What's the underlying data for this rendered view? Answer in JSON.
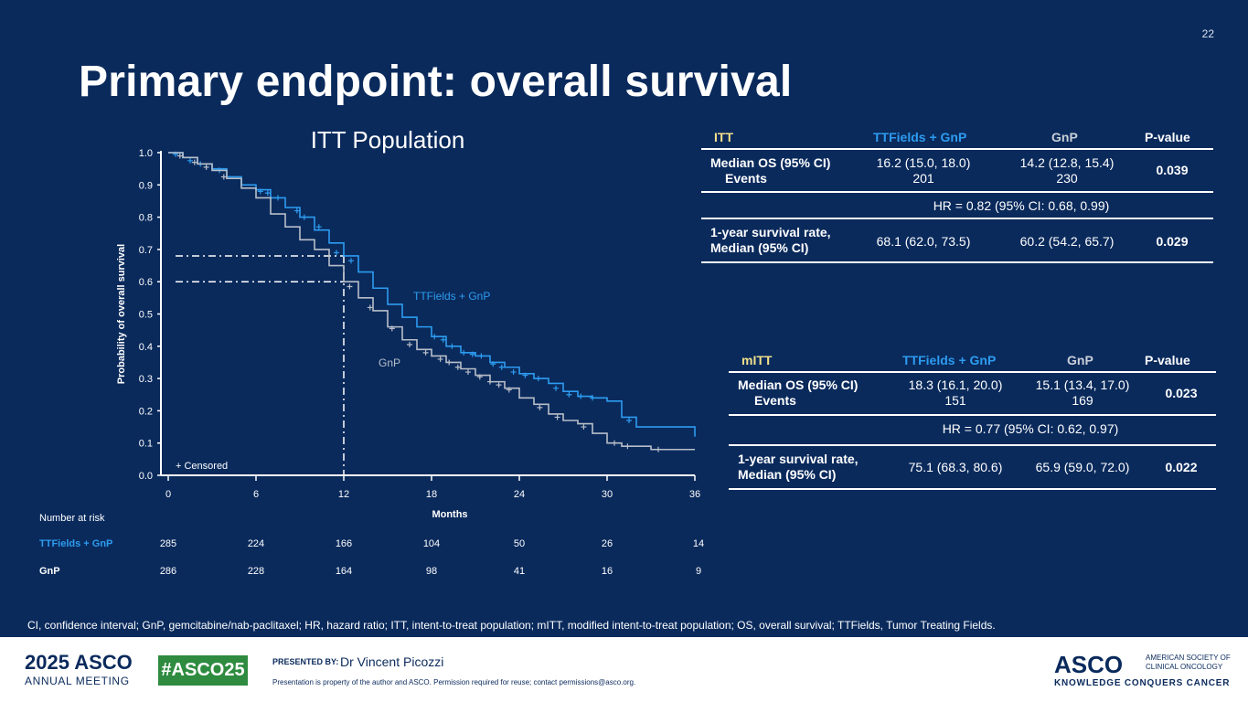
{
  "slide": {
    "number": "22",
    "title": "Primary endpoint: overall survival"
  },
  "chart_data": {
    "type": "line",
    "subtype": "kaplan-meier",
    "title": "ITT Population",
    "xlabel": "Months",
    "ylabel": "Probability of overall survival",
    "x_ticks": [
      0,
      6,
      12,
      18,
      24,
      30,
      36
    ],
    "y_ticks": [
      "0.0",
      "0.1",
      "0.2",
      "0.3",
      "0.4",
      "0.5",
      "0.6",
      "0.7",
      "0.8",
      "0.9",
      "1.0"
    ],
    "xlim": [
      0,
      36
    ],
    "ylim": [
      0,
      1.0
    ],
    "legend_note": "+ Censored",
    "reference_lines": [
      {
        "month": 12,
        "survival": 0.68,
        "series": "TTFields + GnP"
      },
      {
        "month": 12,
        "survival": 0.6,
        "series": "GnP"
      }
    ],
    "series": [
      {
        "name": "TTFields + GnP",
        "label": "TTFields + GnP",
        "color": "#2d9cf0",
        "points": [
          [
            0,
            1.0
          ],
          [
            1,
            0.985
          ],
          [
            2,
            0.965
          ],
          [
            3,
            0.95
          ],
          [
            4,
            0.925
          ],
          [
            5,
            0.9
          ],
          [
            6,
            0.885
          ],
          [
            7,
            0.86
          ],
          [
            8,
            0.83
          ],
          [
            9,
            0.8
          ],
          [
            10,
            0.76
          ],
          [
            11,
            0.72
          ],
          [
            12,
            0.68
          ],
          [
            13,
            0.63
          ],
          [
            14,
            0.58
          ],
          [
            15,
            0.53
          ],
          [
            16,
            0.49
          ],
          [
            17,
            0.46
          ],
          [
            18,
            0.43
          ],
          [
            19,
            0.4
          ],
          [
            20,
            0.38
          ],
          [
            21,
            0.37
          ],
          [
            22,
            0.35
          ],
          [
            23,
            0.335
          ],
          [
            24,
            0.315
          ],
          [
            25,
            0.3
          ],
          [
            26,
            0.285
          ],
          [
            27,
            0.26
          ],
          [
            28,
            0.245
          ],
          [
            29,
            0.24
          ],
          [
            30,
            0.23
          ],
          [
            31,
            0.18
          ],
          [
            32,
            0.15
          ],
          [
            33,
            0.15
          ],
          [
            35,
            0.15
          ],
          [
            36,
            0.12
          ]
        ],
        "censored": [
          [
            0.5,
            0.995
          ],
          [
            1.5,
            0.975
          ],
          [
            2.2,
            0.965
          ],
          [
            3.5,
            0.945
          ],
          [
            6.3,
            0.88
          ],
          [
            6.8,
            0.875
          ],
          [
            7.5,
            0.86
          ],
          [
            8.8,
            0.82
          ],
          [
            9.3,
            0.8
          ],
          [
            10.3,
            0.77
          ],
          [
            11.5,
            0.69
          ],
          [
            12.5,
            0.665
          ],
          [
            18.2,
            0.43
          ],
          [
            18.8,
            0.42
          ],
          [
            19.4,
            0.4
          ],
          [
            20.2,
            0.38
          ],
          [
            20.8,
            0.375
          ],
          [
            21.4,
            0.37
          ],
          [
            22.2,
            0.345
          ],
          [
            22.8,
            0.335
          ],
          [
            23.6,
            0.32
          ],
          [
            24.4,
            0.31
          ],
          [
            25.3,
            0.3
          ],
          [
            26.5,
            0.27
          ],
          [
            27.4,
            0.25
          ],
          [
            28.2,
            0.245
          ],
          [
            29.0,
            0.24
          ],
          [
            31.5,
            0.17
          ]
        ]
      },
      {
        "name": "GnP",
        "label": "GnP",
        "color": "#b8bec8",
        "points": [
          [
            0,
            1.0
          ],
          [
            1,
            0.985
          ],
          [
            2,
            0.965
          ],
          [
            3,
            0.945
          ],
          [
            4,
            0.92
          ],
          [
            5,
            0.89
          ],
          [
            6,
            0.86
          ],
          [
            7,
            0.81
          ],
          [
            8,
            0.77
          ],
          [
            9,
            0.73
          ],
          [
            10,
            0.7
          ],
          [
            11,
            0.65
          ],
          [
            12,
            0.6
          ],
          [
            13,
            0.55
          ],
          [
            14,
            0.51
          ],
          [
            15,
            0.46
          ],
          [
            16,
            0.42
          ],
          [
            17,
            0.39
          ],
          [
            18,
            0.37
          ],
          [
            19,
            0.35
          ],
          [
            20,
            0.33
          ],
          [
            21,
            0.31
          ],
          [
            22,
            0.29
          ],
          [
            23,
            0.27
          ],
          [
            24,
            0.24
          ],
          [
            25,
            0.22
          ],
          [
            26,
            0.19
          ],
          [
            27,
            0.17
          ],
          [
            28,
            0.16
          ],
          [
            29,
            0.13
          ],
          [
            30,
            0.1
          ],
          [
            31,
            0.09
          ],
          [
            32,
            0.09
          ],
          [
            33,
            0.08
          ],
          [
            36,
            0.08
          ]
        ],
        "censored": [
          [
            0.8,
            0.99
          ],
          [
            1.8,
            0.97
          ],
          [
            2.6,
            0.955
          ],
          [
            3.8,
            0.925
          ],
          [
            12.4,
            0.585
          ],
          [
            13.8,
            0.52
          ],
          [
            15.3,
            0.455
          ],
          [
            16.5,
            0.405
          ],
          [
            17.6,
            0.38
          ],
          [
            18.6,
            0.36
          ],
          [
            19.2,
            0.35
          ],
          [
            19.8,
            0.335
          ],
          [
            20.5,
            0.32
          ],
          [
            21.3,
            0.305
          ],
          [
            22.0,
            0.29
          ],
          [
            22.6,
            0.28
          ],
          [
            23.3,
            0.265
          ],
          [
            25.4,
            0.21
          ],
          [
            26.6,
            0.18
          ],
          [
            28.4,
            0.15
          ],
          [
            30.5,
            0.1
          ],
          [
            31.4,
            0.09
          ],
          [
            33.5,
            0.08
          ]
        ]
      }
    ],
    "number_at_risk": {
      "header": "Number at risk",
      "rows": [
        {
          "label": "TTFields + GnP",
          "values": [
            "285",
            "224",
            "166",
            "104",
            "50",
            "26",
            "14"
          ]
        },
        {
          "label": "GnP",
          "values": [
            "286",
            "228",
            "164",
            "98",
            "41",
            "16",
            "9"
          ]
        }
      ]
    }
  },
  "itt_table": {
    "headers": [
      "ITT",
      "TTFields + GnP",
      "GnP",
      "P-value"
    ],
    "median_label_1": "Median OS (95% CI)",
    "median_label_2": "Events",
    "median_ttf": "16.2 (15.0, 18.0)",
    "events_ttf": "201",
    "median_gnp": "14.2 (12.8, 15.4)",
    "events_gnp": "230",
    "p_median": "0.039",
    "hr": "HR = 0.82 (95% CI: 0.68, 0.99)",
    "surv_label_1": "1-year survival rate,",
    "surv_label_2": "Median (95% CI)",
    "surv_ttf": "68.1 (62.0, 73.5)",
    "surv_gnp": "60.2 (54.2, 65.7)",
    "p_surv": "0.029"
  },
  "mitt_table": {
    "headers": [
      "mITT",
      "TTFields + GnP",
      "GnP",
      "P-value"
    ],
    "median_label_1": "Median OS (95% CI)",
    "median_label_2": "Events",
    "median_ttf": "18.3 (16.1, 20.0)",
    "events_ttf": "151",
    "median_gnp": "15.1 (13.4, 17.0)",
    "events_gnp": "169",
    "p_median": "0.023",
    "hr": "HR = 0.77 (95% CI: 0.62, 0.97)",
    "surv_label_1": "1-year survival rate,",
    "surv_label_2": "Median (95% CI)",
    "surv_ttf": "75.1 (68.3, 80.6)",
    "surv_gnp": "65.9 (59.0, 72.0)",
    "p_surv": "0.022"
  },
  "footnote": "CI, confidence interval; GnP, gemcitabine/nab-paclitaxel; HR, hazard ratio; ITT, intent-to-treat population; mITT, modified intent-to-treat population; OS, overall survival; TTFields, Tumor Treating Fields.",
  "footer": {
    "meeting_year": "2025 ASCO",
    "meeting_sub": "ANNUAL MEETING",
    "hashtag": "#ASCO25",
    "presented_by": "PRESENTED BY:",
    "presenter": "Dr Vincent Picozzi",
    "disclaimer": "Presentation is property of the author and ASCO. Permission required for reuse; contact permissions@asco.org.",
    "asco": "ASCO",
    "society": "AMERICAN SOCIETY OF CLINICAL ONCOLOGY",
    "tagline": "KNOWLEDGE CONQUERS CANCER"
  }
}
